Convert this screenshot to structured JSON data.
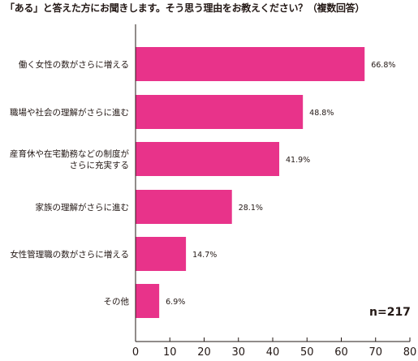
{
  "chart_data": {
    "type": "bar",
    "orientation": "horizontal",
    "title": "「ある」と答えた方にお聞きします。そう思う理由をお教えください？（複数回答）",
    "categories": [
      [
        "働く女性の数がさらに増える"
      ],
      [
        "職場や社会の理解がさらに進む"
      ],
      [
        "産育休や在宅勤務などの制度が",
        "さらに充実する"
      ],
      [
        "家族の理解がさらに進む"
      ],
      [
        "女性管理職の数がさらに増える"
      ],
      [
        "その他"
      ]
    ],
    "values": [
      66.8,
      48.8,
      41.9,
      28.1,
      14.7,
      6.9
    ],
    "value_labels": [
      "66.8%",
      "48.8%",
      "41.9%",
      "28.1%",
      "14.7%",
      "6.9%"
    ],
    "xlim": [
      0,
      80
    ],
    "xticks": [
      0,
      10,
      20,
      30,
      40,
      50,
      60,
      70,
      80
    ],
    "bar_color": "#e8338a",
    "annotation": "n=217",
    "grid": false
  }
}
